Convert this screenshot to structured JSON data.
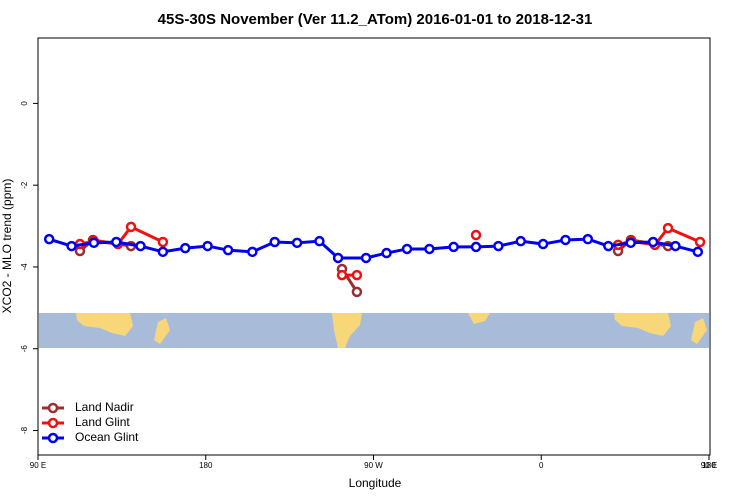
{
  "chart_data": {
    "type": "line",
    "title": "45S-30S November (Ver 11.2_ATom)   2016-01-01 to 2018-12-31",
    "x_label": "Longitude",
    "y_label": "XCO2 - MLO trend (ppm)",
    "xlim": [
      90,
      450
    ],
    "xticks": [
      {
        "value": 90,
        "label": "90 E"
      },
      {
        "value": 180,
        "label": "180"
      },
      {
        "value": 270,
        "label": "90 W"
      },
      {
        "value": 360,
        "label": "0"
      },
      {
        "value": 450,
        "label": "90 E"
      },
      {
        "value": 540,
        "label": "180"
      }
    ],
    "ylim": [
      -8.6,
      1.6
    ],
    "yticks": [
      -8,
      -6,
      -4,
      -2,
      0
    ],
    "legend": "bottom-left",
    "series": [
      {
        "name": "Land Nadir",
        "color": "#9b2d30",
        "x": [
          112.5,
          119.5,
          139.9,
          null,
          253.1,
          261.1,
          null,
          401.2,
          408.1,
          428
        ],
        "values": [
          -3.61,
          -3.34,
          -3.49,
          null,
          -4.05,
          -4.61,
          null,
          -3.61,
          -3.34,
          -3.49
        ]
      },
      {
        "name": "Land Glint",
        "color": "#ee1111",
        "x": [
          112.5,
          120,
          132.9,
          139.9,
          157,
          null,
          253.1,
          261.1,
          null,
          325,
          null,
          401.2,
          408.1,
          421,
          428,
          445.2
        ],
        "values": [
          -3.44,
          -3.37,
          -3.44,
          -3.02,
          -3.39,
          null,
          -4.2,
          -4.2,
          null,
          -3.22,
          null,
          -3.46,
          -3.37,
          -3.46,
          -3.05,
          -3.39
        ]
      },
      {
        "name": "Ocean Glint",
        "color": "#0000ee",
        "x": [
          96,
          108,
          120,
          132,
          145,
          157,
          169,
          181,
          192,
          205,
          217,
          229,
          241,
          251,
          266,
          277,
          288,
          300,
          313,
          325,
          337,
          349,
          361,
          373,
          385,
          396,
          408,
          420,
          432,
          444
        ],
        "values": [
          -3.32,
          -3.49,
          -3.41,
          -3.39,
          -3.49,
          -3.63,
          -3.54,
          -3.49,
          -3.59,
          -3.63,
          -3.39,
          -3.41,
          -3.37,
          -3.78,
          -3.78,
          -3.66,
          -3.56,
          -3.56,
          -3.51,
          -3.51,
          -3.49,
          -3.37,
          -3.44,
          -3.34,
          -3.32,
          -3.49,
          -3.41,
          -3.39,
          -3.49,
          -3.63
        ]
      }
    ]
  }
}
